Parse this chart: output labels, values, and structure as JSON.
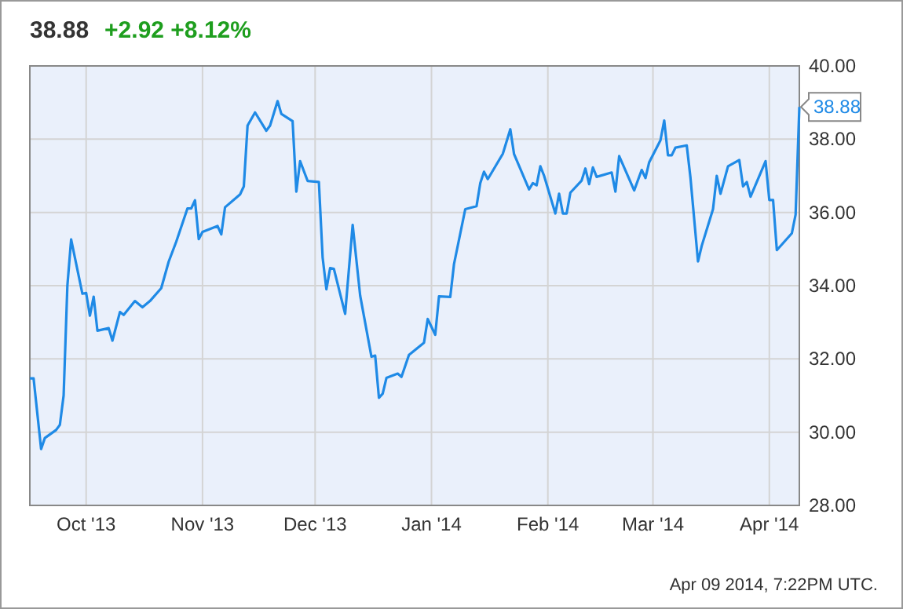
{
  "chart_data": {
    "type": "line",
    "title": "38.88",
    "subtitle": "+2.92 +8.12%",
    "x": [
      "2013-09-16",
      "2013-09-17",
      "2013-09-19",
      "2013-09-20",
      "2013-09-23",
      "2013-09-24",
      "2013-09-25",
      "2013-09-26",
      "2013-09-27",
      "2013-09-30",
      "2013-10-01",
      "2013-10-02",
      "2013-10-03",
      "2013-10-04",
      "2013-10-07",
      "2013-10-08",
      "2013-10-10",
      "2013-10-11",
      "2013-10-14",
      "2013-10-16",
      "2013-10-18",
      "2013-10-21",
      "2013-10-23",
      "2013-10-25",
      "2013-10-28",
      "2013-10-29",
      "2013-10-30",
      "2013-10-31",
      "2013-11-01",
      "2013-11-05",
      "2013-11-06",
      "2013-11-07",
      "2013-11-11",
      "2013-11-12",
      "2013-11-13",
      "2013-11-15",
      "2013-11-18",
      "2013-11-19",
      "2013-11-21",
      "2013-11-22",
      "2013-11-25",
      "2013-11-26",
      "2013-11-27",
      "2013-11-29",
      "2013-12-02",
      "2013-12-03",
      "2013-12-04",
      "2013-12-05",
      "2013-12-06",
      "2013-12-09",
      "2013-12-11",
      "2013-12-13",
      "2013-12-16",
      "2013-12-17",
      "2013-12-18",
      "2013-12-19",
      "2013-12-20",
      "2013-12-23",
      "2013-12-24",
      "2013-12-26",
      "2013-12-30",
      "2013-12-31",
      "2014-01-02",
      "2014-01-03",
      "2014-01-06",
      "2014-01-07",
      "2014-01-10",
      "2014-01-13",
      "2014-01-14",
      "2014-01-15",
      "2014-01-16",
      "2014-01-20",
      "2014-01-22",
      "2014-01-23",
      "2014-01-27",
      "2014-01-28",
      "2014-01-29",
      "2014-01-30",
      "2014-01-31",
      "2014-02-03",
      "2014-02-04",
      "2014-02-05",
      "2014-02-06",
      "2014-02-07",
      "2014-02-10",
      "2014-02-11",
      "2014-02-12",
      "2014-02-13",
      "2014-02-14",
      "2014-02-18",
      "2014-02-19",
      "2014-02-20",
      "2014-02-24",
      "2014-02-26",
      "2014-02-27",
      "2014-02-28",
      "2014-03-03",
      "2014-03-04",
      "2014-03-05",
      "2014-03-06",
      "2014-03-07",
      "2014-03-10",
      "2014-03-11",
      "2014-03-13",
      "2014-03-14",
      "2014-03-17",
      "2014-03-18",
      "2014-03-19",
      "2014-03-21",
      "2014-03-24",
      "2014-03-25",
      "2014-03-26",
      "2014-03-27",
      "2014-03-31",
      "2014-04-01",
      "2014-04-02",
      "2014-04-03",
      "2014-04-07",
      "2014-04-08",
      "2014-04-09"
    ],
    "series": [
      {
        "color": "#1f8ae6",
        "values": [
          31.47,
          31.47,
          29.54,
          29.84,
          30.06,
          30.2,
          31.0,
          34.0,
          35.26,
          33.78,
          33.8,
          33.18,
          33.7,
          32.77,
          32.84,
          32.5,
          33.28,
          33.2,
          33.58,
          33.41,
          33.58,
          33.93,
          34.66,
          35.2,
          36.11,
          36.11,
          36.33,
          35.27,
          35.47,
          35.63,
          35.4,
          36.14,
          36.49,
          36.71,
          38.37,
          38.73,
          38.23,
          38.37,
          39.04,
          38.69,
          38.49,
          36.57,
          37.4,
          36.86,
          36.83,
          34.77,
          33.9,
          34.48,
          34.46,
          33.23,
          35.66,
          33.73,
          32.06,
          32.09,
          30.94,
          31.05,
          31.48,
          31.6,
          31.51,
          32.11,
          32.44,
          33.09,
          32.66,
          33.71,
          33.69,
          34.59,
          36.09,
          36.17,
          36.8,
          37.11,
          36.91,
          37.6,
          38.27,
          37.59,
          36.63,
          36.8,
          36.74,
          37.26,
          37.0,
          35.97,
          36.51,
          35.97,
          35.97,
          36.54,
          36.87,
          37.2,
          36.77,
          37.23,
          36.97,
          37.09,
          36.57,
          37.54,
          36.6,
          37.16,
          36.94,
          37.37,
          37.97,
          38.51,
          37.56,
          37.56,
          37.77,
          37.83,
          36.94,
          34.66,
          35.09,
          36.09,
          37.0,
          36.51,
          37.26,
          37.43,
          36.71,
          36.83,
          36.43,
          37.4,
          36.34,
          36.34,
          34.97,
          35.43,
          35.94,
          38.88
        ]
      }
    ],
    "xlim": [
      "2013-09-16",
      "2014-04-09"
    ],
    "xticks": [
      {
        "value": "2013-10-01",
        "label": "Oct '13"
      },
      {
        "value": "2013-11-01",
        "label": "Nov '13"
      },
      {
        "value": "2013-12-01",
        "label": "Dec '13"
      },
      {
        "value": "2014-01-01",
        "label": "Jan '14"
      },
      {
        "value": "2014-02-01",
        "label": "Feb '14"
      },
      {
        "value": "2014-03-01",
        "label": "Mar '14"
      },
      {
        "value": "2014-04-01",
        "label": "Apr '14"
      }
    ],
    "ylim": [
      28,
      40
    ],
    "yticks": [
      {
        "value": 28,
        "label": "28.00"
      },
      {
        "value": 30,
        "label": "30.00"
      },
      {
        "value": 32,
        "label": "32.00"
      },
      {
        "value": 34,
        "label": "34.00"
      },
      {
        "value": 36,
        "label": "36.00"
      },
      {
        "value": 38,
        "label": "38.00"
      },
      {
        "value": 40,
        "label": "40.00"
      }
    ],
    "grid": true,
    "marker": "none",
    "line_style": "solid",
    "annotations": [
      {
        "text": "38.88",
        "x": "2014-04-09",
        "y": 38.88
      },
      "Apr 09 2014, 7:22PM UTC."
    ]
  }
}
